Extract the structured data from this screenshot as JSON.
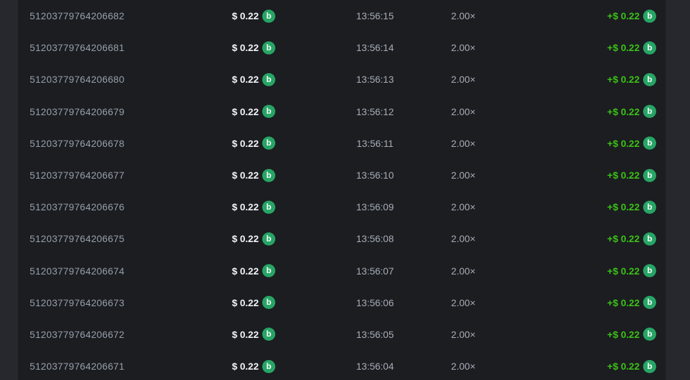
{
  "page": {
    "background_color": "#26282d",
    "card_background_color": "#1b1d21"
  },
  "colors": {
    "bet_id_text": "#98a0ab",
    "time_text": "#a8aeb8",
    "multiplier_text": "#a8aeb8",
    "bet_amount_text": "#f4f5f7",
    "payout_text": "#3cc215",
    "coin_circle": "#27a565",
    "coin_glyph": "#ffffff"
  },
  "coin": {
    "icon_name": "bcd-coin-icon",
    "glyph": "b"
  },
  "bets_table": {
    "columns": [
      "bet-id",
      "bet-amount",
      "time",
      "multiplier",
      "payout"
    ],
    "rows": [
      {
        "id": "51203779764206682",
        "bet": "$ 0.22",
        "time": "13:56:15",
        "multiplier": "2.00×",
        "payout": "+$ 0.22"
      },
      {
        "id": "51203779764206681",
        "bet": "$ 0.22",
        "time": "13:56:14",
        "multiplier": "2.00×",
        "payout": "+$ 0.22"
      },
      {
        "id": "51203779764206680",
        "bet": "$ 0.22",
        "time": "13:56:13",
        "multiplier": "2.00×",
        "payout": "+$ 0.22"
      },
      {
        "id": "51203779764206679",
        "bet": "$ 0.22",
        "time": "13:56:12",
        "multiplier": "2.00×",
        "payout": "+$ 0.22"
      },
      {
        "id": "51203779764206678",
        "bet": "$ 0.22",
        "time": "13:56:11",
        "multiplier": "2.00×",
        "payout": "+$ 0.22"
      },
      {
        "id": "51203779764206677",
        "bet": "$ 0.22",
        "time": "13:56:10",
        "multiplier": "2.00×",
        "payout": "+$ 0.22"
      },
      {
        "id": "51203779764206676",
        "bet": "$ 0.22",
        "time": "13:56:09",
        "multiplier": "2.00×",
        "payout": "+$ 0.22"
      },
      {
        "id": "51203779764206675",
        "bet": "$ 0.22",
        "time": "13:56:08",
        "multiplier": "2.00×",
        "payout": "+$ 0.22"
      },
      {
        "id": "51203779764206674",
        "bet": "$ 0.22",
        "time": "13:56:07",
        "multiplier": "2.00×",
        "payout": "+$ 0.22"
      },
      {
        "id": "51203779764206673",
        "bet": "$ 0.22",
        "time": "13:56:06",
        "multiplier": "2.00×",
        "payout": "+$ 0.22"
      },
      {
        "id": "51203779764206672",
        "bet": "$ 0.22",
        "time": "13:56:05",
        "multiplier": "2.00×",
        "payout": "+$ 0.22"
      },
      {
        "id": "51203779764206671",
        "bet": "$ 0.22",
        "time": "13:56:04",
        "multiplier": "2.00×",
        "payout": "+$ 0.22"
      }
    ]
  }
}
